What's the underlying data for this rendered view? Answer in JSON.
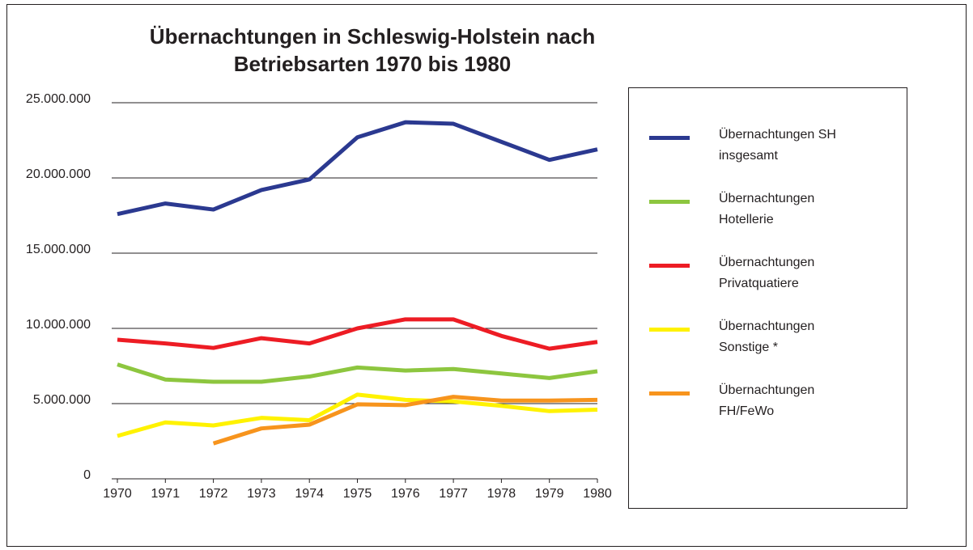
{
  "chart_data": {
    "type": "line",
    "title": "Übernachtungen in Schleswig-Holstein nach Betriebsarten 1970 bis 1980",
    "x": [
      1970,
      1971,
      1972,
      1973,
      1974,
      1975,
      1976,
      1977,
      1978,
      1979,
      1980
    ],
    "xlim": [
      1970,
      1980
    ],
    "xticks": [
      1970,
      1971,
      1972,
      1973,
      1974,
      1975,
      1976,
      1977,
      1978,
      1979,
      1980
    ],
    "ylim": [
      0,
      25000000
    ],
    "yticks": [
      0,
      {
        "value": 5000000,
        "label": "5.000.000"
      },
      {
        "value": 10000000,
        "label": "10.000.000"
      },
      {
        "value": 15000000,
        "label": "15.000.000"
      },
      {
        "value": 20000000,
        "label": "20.000.000"
      },
      {
        "value": 25000000,
        "label": "25.000.000"
      }
    ],
    "grid": true,
    "legend": "right",
    "series": [
      {
        "name": "Übernachtungen SH insgesamt",
        "color": "#2b3990",
        "values": [
          17600000,
          18300000,
          17900000,
          19200000,
          19900000,
          22700000,
          23700000,
          23600000,
          22400000,
          21200000,
          21900000
        ]
      },
      {
        "name": "Übernachtungen Hotellerie",
        "color": "#8dc63f",
        "values": [
          7600000,
          6600000,
          6450000,
          6450000,
          6800000,
          7400000,
          7200000,
          7300000,
          7000000,
          6700000,
          7150000
        ]
      },
      {
        "name": "Übernachtungen Privatquatiere",
        "color": "#ed1c24",
        "values": [
          9250000,
          9000000,
          8700000,
          9350000,
          9000000,
          10000000,
          10600000,
          10600000,
          9500000,
          8650000,
          9100000
        ]
      },
      {
        "name": "Übernachtungen Sonstige *",
        "color": "#fff200",
        "values": [
          2850000,
          3750000,
          3550000,
          4050000,
          3900000,
          5600000,
          5250000,
          5150000,
          4850000,
          4500000,
          4600000
        ]
      },
      {
        "name": "Übernachtungen FH/FeWo",
        "color": "#f7941d",
        "values": [
          null,
          null,
          2350000,
          3350000,
          3600000,
          4950000,
          4900000,
          5450000,
          5200000,
          5200000,
          5250000
        ]
      }
    ]
  }
}
